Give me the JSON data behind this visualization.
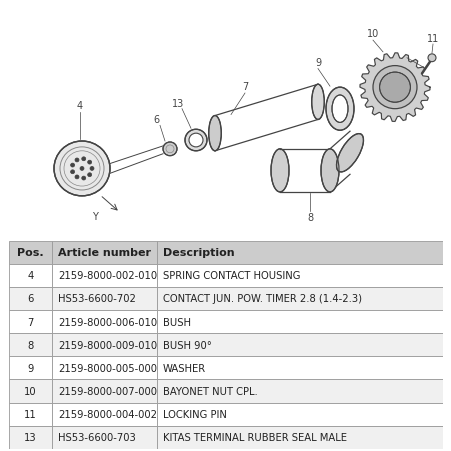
{
  "background_color": "#ffffff",
  "table_header": [
    "Pos.",
    "Article number",
    "Description"
  ],
  "table_header_bg": "#cccccc",
  "table_row_bg_even": "#ffffff",
  "table_row_bg_odd": "#f0f0f0",
  "table_border_color": "#999999",
  "table_text_color": "#222222",
  "table_data": [
    [
      "4",
      "2159-8000-002-010",
      "SPRING CONTACT HOUSING"
    ],
    [
      "6",
      "HS53-6600-702",
      "CONTACT JUN. POW. TIMER 2.8 (1.4-2.3)"
    ],
    [
      "7",
      "2159-8000-006-010",
      "BUSH"
    ],
    [
      "8",
      "2159-8000-009-010",
      "BUSH 90°"
    ],
    [
      "9",
      "2159-8000-005-000",
      "WASHER"
    ],
    [
      "10",
      "2159-8000-007-000",
      "BAYONET NUT CPL."
    ],
    [
      "11",
      "2159-8000-004-002",
      "LOCKING PIN"
    ],
    [
      "13",
      "HS53-6600-703",
      "KITAS TERMINAL RUBBER SEAL MALE"
    ]
  ],
  "dark": "#444444",
  "mid": "#888888",
  "lite": "#bbbbbb"
}
